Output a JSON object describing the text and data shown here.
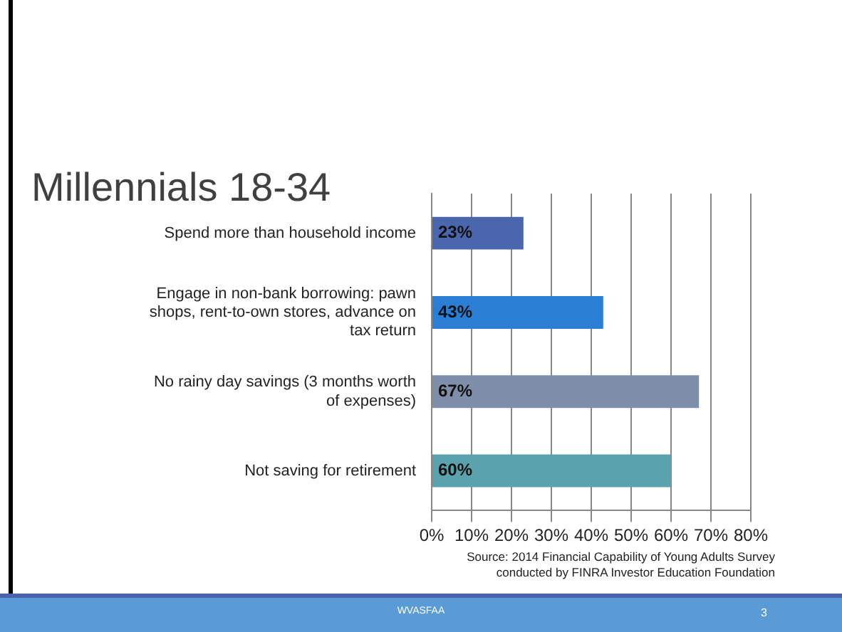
{
  "chart_data": {
    "type": "bar",
    "orientation": "horizontal",
    "title": "Millennials 18-34",
    "categories": [
      "Spend more than household income",
      "Engage in non-bank borrowing: pawn shops, rent-to-own stores, advance on tax return",
      "No rainy day savings (3 months worth of expenses)",
      "Not saving for retirement"
    ],
    "values": [
      23,
      43,
      67,
      60
    ],
    "colors": [
      "#4a66ac",
      "#2a7fd5",
      "#7f8fa9",
      "#5aa2ae"
    ],
    "value_labels": [
      "23%",
      "43%",
      "67%",
      "60%"
    ],
    "xlim": [
      0,
      80
    ],
    "xticks": [
      {
        "value": 0,
        "label": "0%"
      },
      {
        "value": 10,
        "label": "10%"
      },
      {
        "value": 20,
        "label": "20%"
      },
      {
        "value": 30,
        "label": "30%"
      },
      {
        "value": 40,
        "label": "40%"
      },
      {
        "value": 50,
        "label": "50%"
      },
      {
        "value": 60,
        "label": "60%"
      },
      {
        "value": 70,
        "label": "70%"
      },
      {
        "value": 80,
        "label": "80%"
      }
    ],
    "grid": "x",
    "legend": false,
    "annotations": [
      "Source: 2014 Financial Capability of Young Adults Survey conducted by FINRA Investor Education Foundation",
      "WVASFAA",
      "3"
    ]
  }
}
